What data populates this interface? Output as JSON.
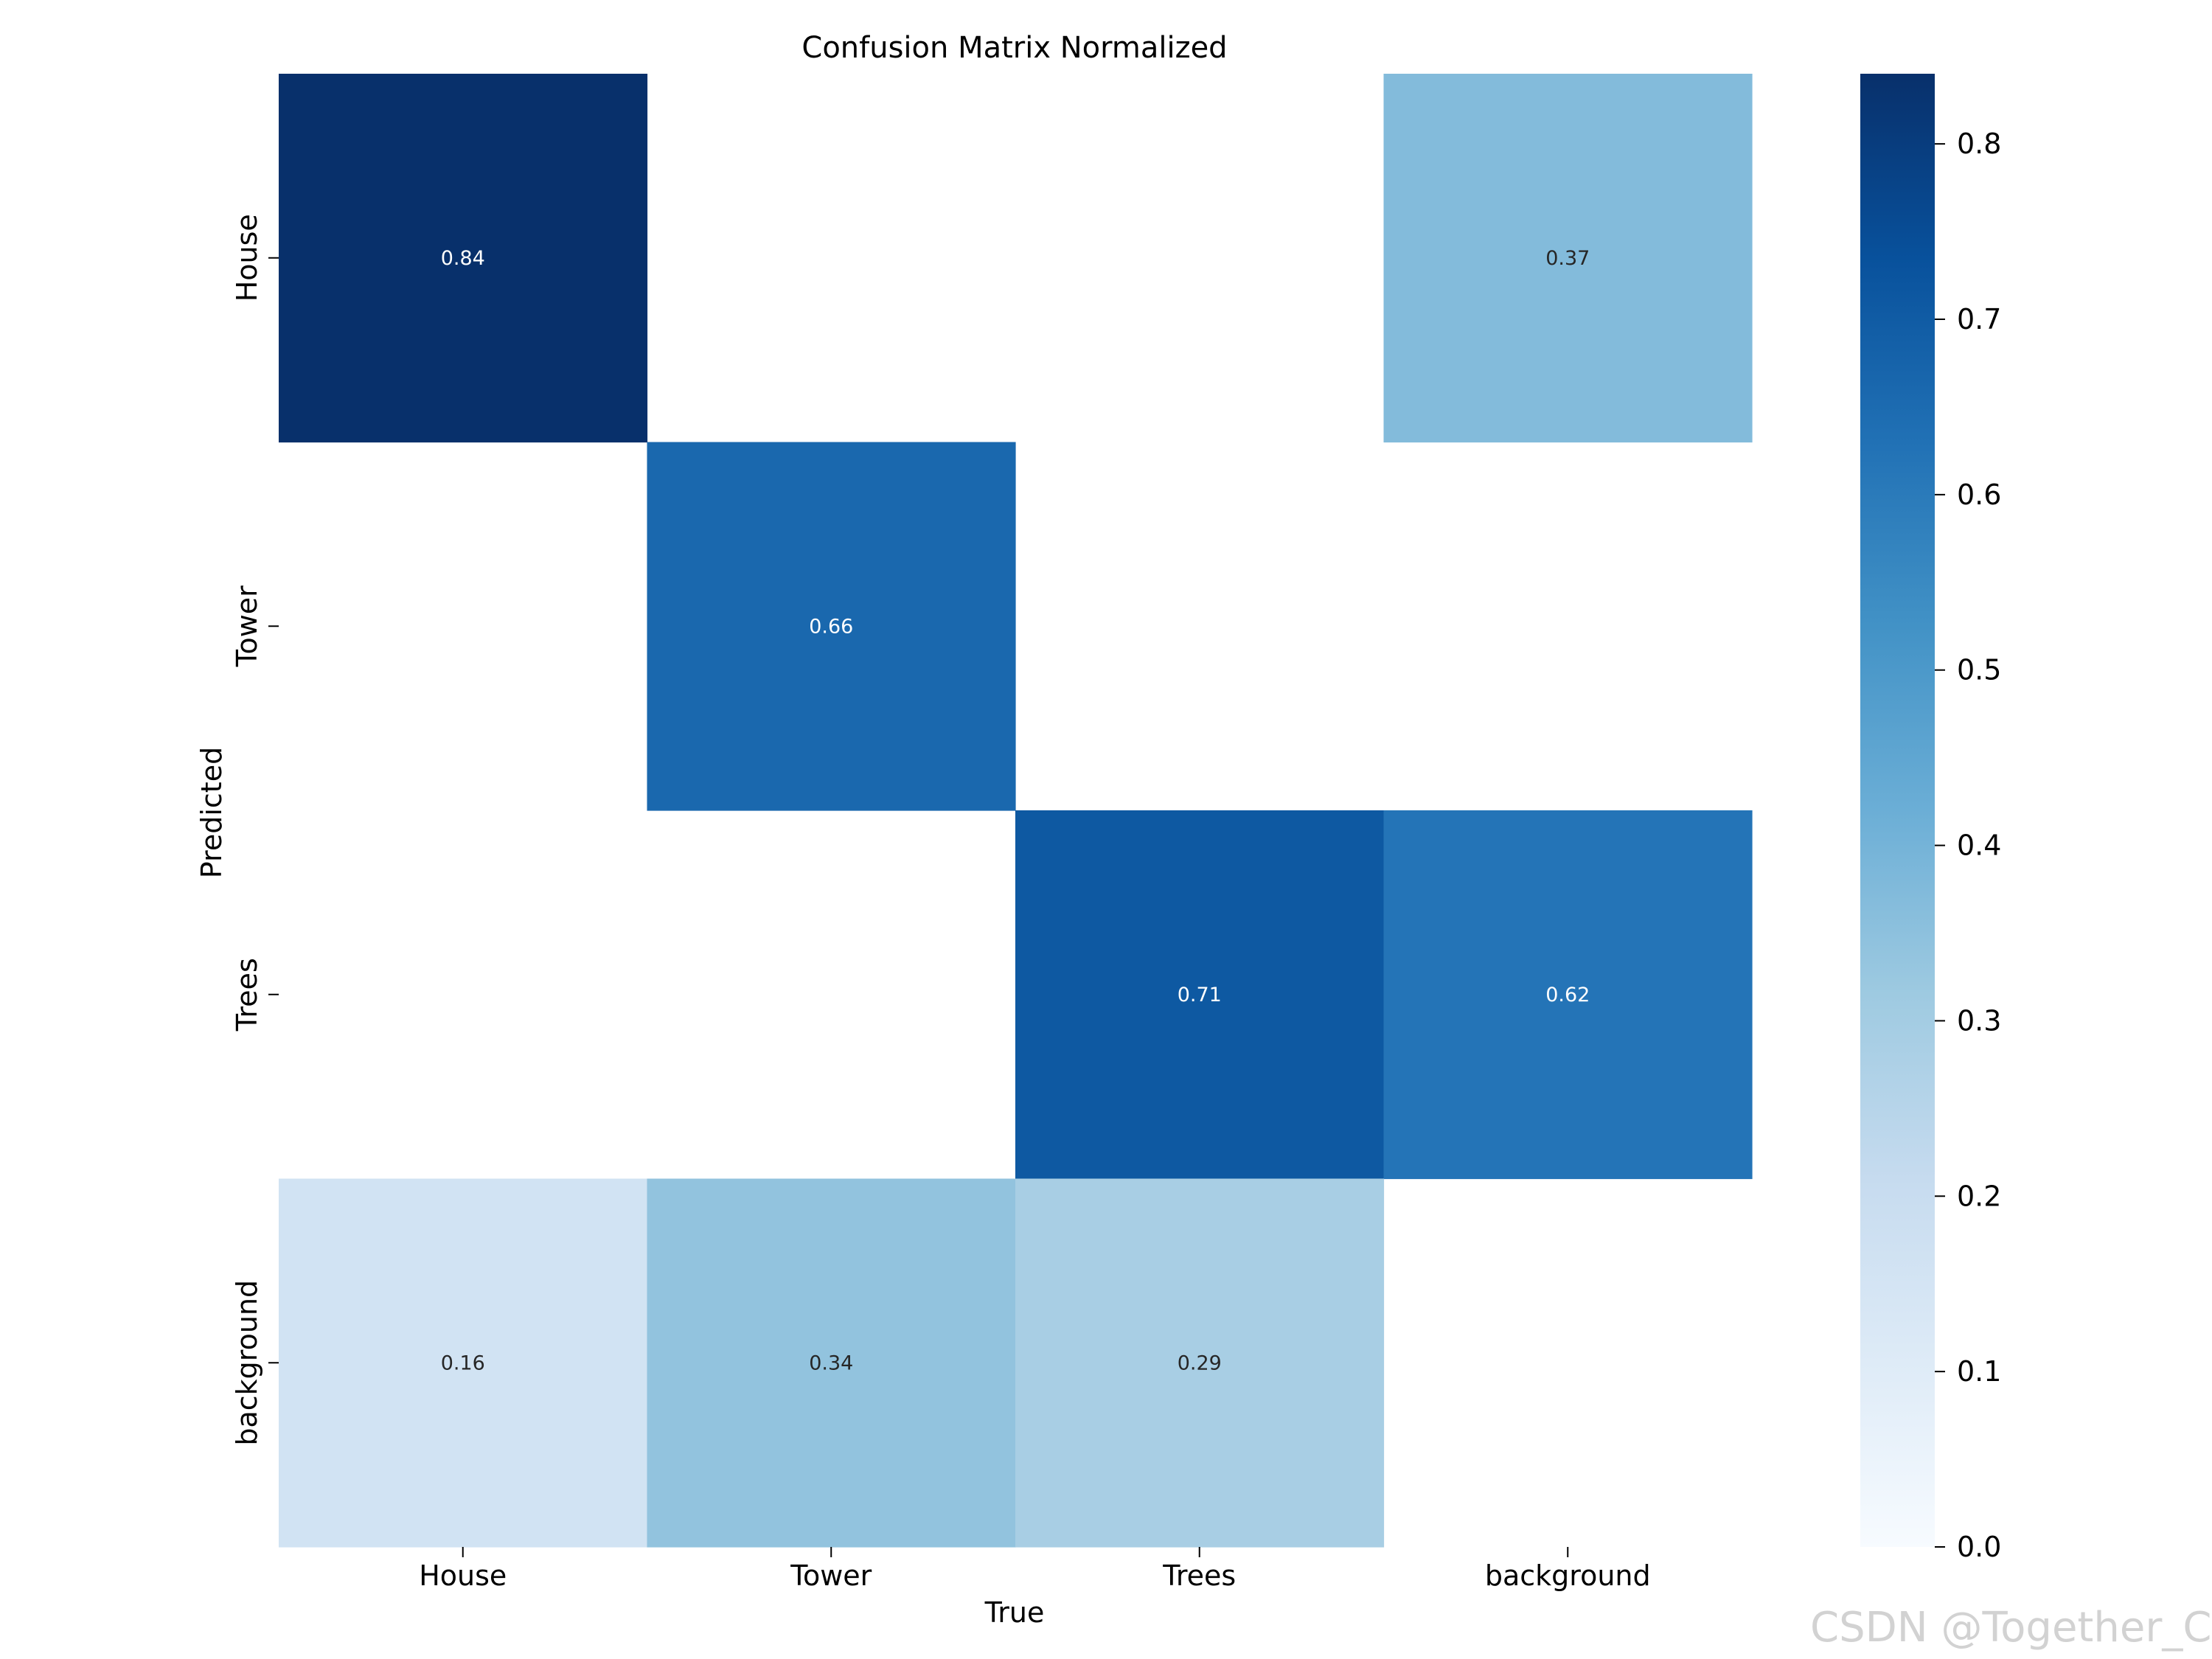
{
  "chart_data": {
    "type": "heatmap",
    "title": "Confusion Matrix Normalized",
    "xlabel": "True",
    "ylabel": "Predicted",
    "x_categories": [
      "House",
      "Tower",
      "Trees",
      "background"
    ],
    "y_categories": [
      "House",
      "Tower",
      "Trees",
      "background"
    ],
    "values": [
      [
        0.84,
        null,
        null,
        0.37
      ],
      [
        null,
        0.66,
        null,
        null
      ],
      [
        null,
        null,
        0.71,
        0.62
      ],
      [
        0.16,
        0.34,
        0.29,
        null
      ]
    ],
    "value_labels": [
      [
        "0.84",
        "",
        "",
        "0.37"
      ],
      [
        "",
        "0.66",
        "",
        ""
      ],
      [
        "",
        "",
        "0.71",
        "0.62"
      ],
      [
        "0.16",
        "0.34",
        "0.29",
        ""
      ]
    ],
    "colorscale": "Blues",
    "color_range": [
      0.0,
      0.84
    ],
    "colorbar_ticks": [
      0.0,
      0.1,
      0.2,
      0.3,
      0.4,
      0.5,
      0.6,
      0.7,
      0.8
    ],
    "colorbar_tick_labels": [
      "0.0",
      "0.1",
      "0.2",
      "0.3",
      "0.4",
      "0.5",
      "0.6",
      "0.7",
      "0.8"
    ],
    "grid": false
  },
  "watermark": "CSDN @Together_CZ"
}
